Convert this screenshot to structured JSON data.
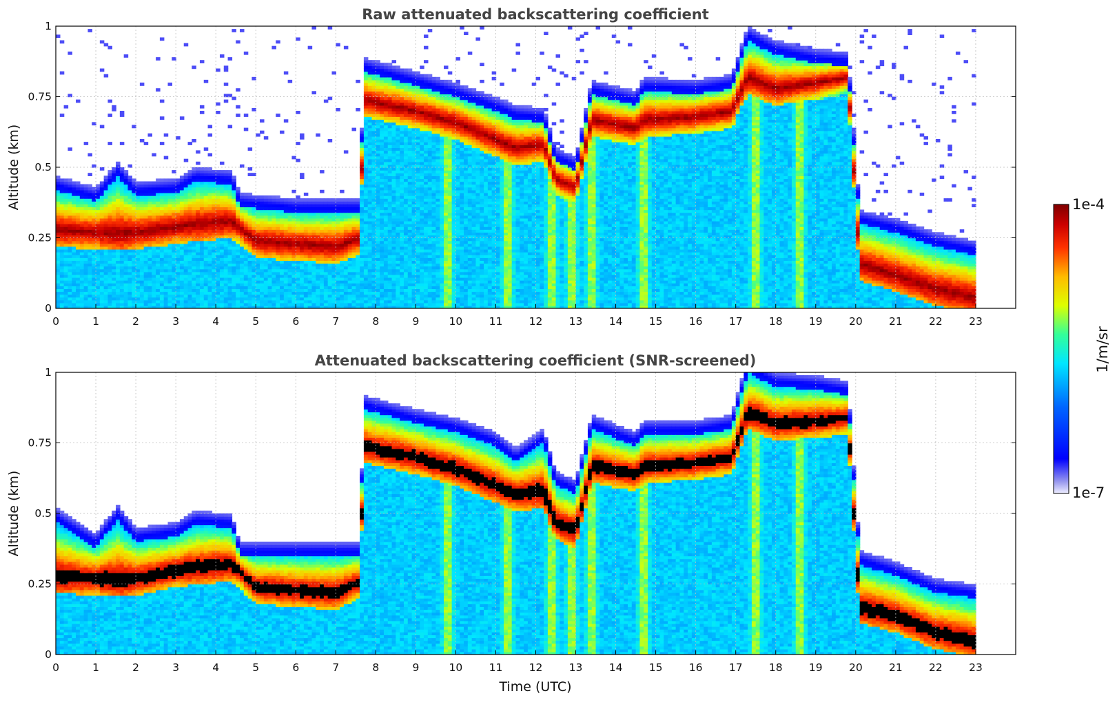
{
  "figure": {
    "xlabel": "Time (UTC)",
    "colorbar": {
      "label": "1/m/sr",
      "max_label": "1e-4",
      "min_label": "1e-7",
      "scale": "log",
      "colormap": "jet",
      "min_color": "#eeeeff",
      "max_color": "#7f0000"
    },
    "screened_color": "#000000",
    "grid": true
  },
  "chart_data": [
    {
      "type": "heatmap",
      "title": "Raw attenuated backscattering coefficient",
      "xlabel": "",
      "ylabel": "Altitude (km)",
      "xlim": [
        0,
        24
      ],
      "ylim": [
        0,
        1
      ],
      "x_ticks": [
        "0",
        "1",
        "2",
        "3",
        "4",
        "5",
        "6",
        "7",
        "8",
        "9",
        "10",
        "11",
        "12",
        "13",
        "14",
        "15",
        "16",
        "17",
        "18",
        "19",
        "20",
        "21",
        "22",
        "23"
      ],
      "y_ticks": [
        "0",
        "0.25",
        "0.5",
        "0.75",
        "1"
      ],
      "y_tick_values": [
        0,
        0.25,
        0.5,
        0.75,
        1
      ],
      "data_end_time": 23,
      "layer_top_km": [
        [
          0,
          0.42
        ],
        [
          1,
          0.38
        ],
        [
          1.55,
          0.47
        ],
        [
          2,
          0.4
        ],
        [
          3,
          0.41
        ],
        [
          3.5,
          0.45
        ],
        [
          4.4,
          0.44
        ],
        [
          4.6,
          0.36
        ],
        [
          6,
          0.34
        ],
        [
          7,
          0.34
        ],
        [
          7.6,
          0.34
        ],
        [
          7.7,
          0.84
        ],
        [
          9,
          0.79
        ],
        [
          10,
          0.75
        ],
        [
          11,
          0.7
        ],
        [
          11.5,
          0.67
        ],
        [
          12.2,
          0.66
        ],
        [
          12.5,
          0.52
        ],
        [
          13,
          0.49
        ],
        [
          13.4,
          0.76
        ],
        [
          14.5,
          0.72
        ],
        [
          14.7,
          0.77
        ],
        [
          16,
          0.76
        ],
        [
          16.9,
          0.78
        ],
        [
          17.3,
          0.95
        ],
        [
          18,
          0.9
        ],
        [
          19,
          0.87
        ],
        [
          19.8,
          0.86
        ],
        [
          20.1,
          0.3
        ],
        [
          21,
          0.27
        ],
        [
          22,
          0.22
        ],
        [
          23,
          0.19
        ]
      ],
      "layer_peak_km": [
        [
          0,
          0.28
        ],
        [
          1,
          0.27
        ],
        [
          2,
          0.27
        ],
        [
          3,
          0.29
        ],
        [
          3.5,
          0.3
        ],
        [
          4.4,
          0.31
        ],
        [
          5,
          0.24
        ],
        [
          6,
          0.23
        ],
        [
          7,
          0.22
        ],
        [
          7.6,
          0.25
        ],
        [
          7.7,
          0.74
        ],
        [
          9,
          0.7
        ],
        [
          10,
          0.66
        ],
        [
          11,
          0.6
        ],
        [
          11.5,
          0.57
        ],
        [
          12.2,
          0.58
        ],
        [
          12.5,
          0.46
        ],
        [
          13,
          0.43
        ],
        [
          13.4,
          0.67
        ],
        [
          14.5,
          0.64
        ],
        [
          14.7,
          0.67
        ],
        [
          16,
          0.68
        ],
        [
          16.9,
          0.7
        ],
        [
          17.3,
          0.82
        ],
        [
          18,
          0.78
        ],
        [
          19,
          0.8
        ],
        [
          19.8,
          0.82
        ],
        [
          20.1,
          0.16
        ],
        [
          21,
          0.12
        ],
        [
          22,
          0.07
        ],
        [
          23,
          0.04
        ]
      ],
      "precip_columns_utc": [
        9.8,
        11.3,
        12.4,
        12.9,
        13.4,
        14.7,
        17.5,
        18.6
      ]
    },
    {
      "type": "heatmap",
      "title": "Attenuated backscattering coefficient (SNR-screened)",
      "xlabel": "Time (UTC)",
      "ylabel": "Altitude (km)",
      "xlim": [
        0,
        24
      ],
      "ylim": [
        0,
        1
      ],
      "x_ticks": [
        "0",
        "1",
        "2",
        "3",
        "4",
        "5",
        "6",
        "7",
        "8",
        "9",
        "10",
        "11",
        "12",
        "13",
        "14",
        "15",
        "16",
        "17",
        "18",
        "19",
        "20",
        "21",
        "22",
        "23"
      ],
      "y_ticks": [
        "0",
        "0.25",
        "0.5",
        "0.75",
        "1"
      ],
      "y_tick_values": [
        0,
        0.25,
        0.5,
        0.75,
        1
      ],
      "data_end_time": 23,
      "layer_top_km": [
        [
          0,
          0.47
        ],
        [
          1,
          0.38
        ],
        [
          1.55,
          0.48
        ],
        [
          2,
          0.4
        ],
        [
          3,
          0.42
        ],
        [
          3.5,
          0.46
        ],
        [
          4.4,
          0.45
        ],
        [
          4.6,
          0.35
        ],
        [
          6,
          0.35
        ],
        [
          7,
          0.35
        ],
        [
          7.6,
          0.35
        ],
        [
          7.7,
          0.87
        ],
        [
          9,
          0.82
        ],
        [
          10,
          0.79
        ],
        [
          11,
          0.74
        ],
        [
          11.5,
          0.68
        ],
        [
          12.2,
          0.75
        ],
        [
          12.5,
          0.6
        ],
        [
          13,
          0.57
        ],
        [
          13.4,
          0.8
        ],
        [
          14.5,
          0.74
        ],
        [
          14.7,
          0.78
        ],
        [
          16,
          0.78
        ],
        [
          16.9,
          0.8
        ],
        [
          17.3,
          1.0
        ],
        [
          18,
          0.95
        ],
        [
          19,
          0.94
        ],
        [
          19.8,
          0.92
        ],
        [
          20.1,
          0.32
        ],
        [
          21,
          0.28
        ],
        [
          22,
          0.22
        ],
        [
          23,
          0.2
        ]
      ],
      "layer_peak_km": [
        [
          0,
          0.28
        ],
        [
          1,
          0.27
        ],
        [
          2,
          0.27
        ],
        [
          3,
          0.3
        ],
        [
          3.5,
          0.31
        ],
        [
          4.4,
          0.32
        ],
        [
          5,
          0.24
        ],
        [
          6,
          0.23
        ],
        [
          7,
          0.22
        ],
        [
          7.6,
          0.26
        ],
        [
          7.7,
          0.74
        ],
        [
          9,
          0.7
        ],
        [
          10,
          0.66
        ],
        [
          11,
          0.6
        ],
        [
          11.5,
          0.57
        ],
        [
          12.2,
          0.58
        ],
        [
          12.5,
          0.47
        ],
        [
          13,
          0.44
        ],
        [
          13.4,
          0.67
        ],
        [
          14.5,
          0.64
        ],
        [
          14.7,
          0.67
        ],
        [
          16,
          0.68
        ],
        [
          16.9,
          0.7
        ],
        [
          17.3,
          0.86
        ],
        [
          18,
          0.82
        ],
        [
          19,
          0.83
        ],
        [
          19.8,
          0.84
        ],
        [
          20.1,
          0.17
        ],
        [
          21,
          0.14
        ],
        [
          22,
          0.08
        ],
        [
          23,
          0.05
        ]
      ],
      "precip_columns_utc": [
        9.8,
        11.3,
        12.4,
        12.9,
        13.4,
        14.7,
        17.5,
        18.6
      ]
    }
  ]
}
